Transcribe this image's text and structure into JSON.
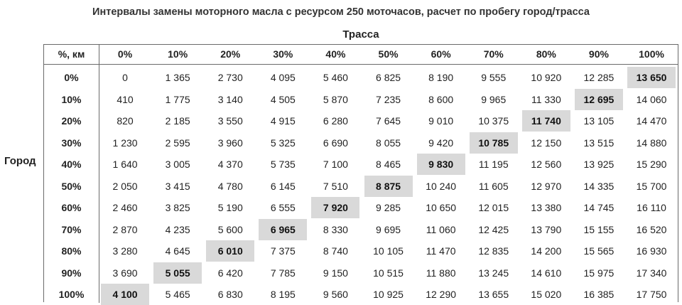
{
  "chart_data": {
    "type": "table",
    "title": "Интервалы замены моторного масла с ресурсом 250 моточасов, расчет по пробегу город/трасса",
    "column_axis_label": "Трасса",
    "row_axis_label": "Город",
    "corner_label": "%, км",
    "columns": [
      "0%",
      "10%",
      "20%",
      "30%",
      "40%",
      "50%",
      "60%",
      "70%",
      "80%",
      "90%",
      "100%"
    ],
    "rows": [
      {
        "label": "0%",
        "values": [
          "0",
          "1 365",
          "2 730",
          "4 095",
          "5 460",
          "6 825",
          "8 190",
          "9 555",
          "10 920",
          "12 285",
          "13 650"
        ],
        "highlight": 10
      },
      {
        "label": "10%",
        "values": [
          "410",
          "1 775",
          "3 140",
          "4 505",
          "5 870",
          "7 235",
          "8 600",
          "9 965",
          "11 330",
          "12 695",
          "14 060"
        ],
        "highlight": 9
      },
      {
        "label": "20%",
        "values": [
          "820",
          "2 185",
          "3 550",
          "4 915",
          "6 280",
          "7 645",
          "9 010",
          "10 375",
          "11 740",
          "13 105",
          "14 470"
        ],
        "highlight": 8
      },
      {
        "label": "30%",
        "values": [
          "1 230",
          "2 595",
          "3 960",
          "5 325",
          "6 690",
          "8 055",
          "9 420",
          "10 785",
          "12 150",
          "13 515",
          "14 880"
        ],
        "highlight": 7
      },
      {
        "label": "40%",
        "values": [
          "1 640",
          "3 005",
          "4 370",
          "5 735",
          "7 100",
          "8 465",
          "9 830",
          "11 195",
          "12 560",
          "13 925",
          "15 290"
        ],
        "highlight": 6
      },
      {
        "label": "50%",
        "values": [
          "2 050",
          "3 415",
          "4 780",
          "6 145",
          "7 510",
          "8 875",
          "10 240",
          "11 605",
          "12 970",
          "14 335",
          "15 700"
        ],
        "highlight": 5
      },
      {
        "label": "60%",
        "values": [
          "2 460",
          "3 825",
          "5 190",
          "6 555",
          "7 920",
          "9 285",
          "10 650",
          "12 015",
          "13 380",
          "14 745",
          "16 110"
        ],
        "highlight": 4
      },
      {
        "label": "70%",
        "values": [
          "2 870",
          "4 235",
          "5 600",
          "6 965",
          "8 330",
          "9 695",
          "11 060",
          "12 425",
          "13 790",
          "15 155",
          "16 520"
        ],
        "highlight": 3
      },
      {
        "label": "80%",
        "values": [
          "3 280",
          "4 645",
          "6 010",
          "7 375",
          "8 740",
          "10 105",
          "11 470",
          "12 835",
          "14 200",
          "15 565",
          "16 930"
        ],
        "highlight": 2
      },
      {
        "label": "90%",
        "values": [
          "3 690",
          "5 055",
          "6 420",
          "7 785",
          "9 150",
          "10 515",
          "11 880",
          "13 245",
          "14 610",
          "15 975",
          "17 340"
        ],
        "highlight": 1
      },
      {
        "label": "100%",
        "values": [
          "4 100",
          "5 465",
          "6 830",
          "8 195",
          "9 560",
          "10 925",
          "12 290",
          "13 655",
          "15 020",
          "16 385",
          "17 750"
        ],
        "highlight": 0
      }
    ],
    "highlight_color": "#d9d9d9"
  }
}
